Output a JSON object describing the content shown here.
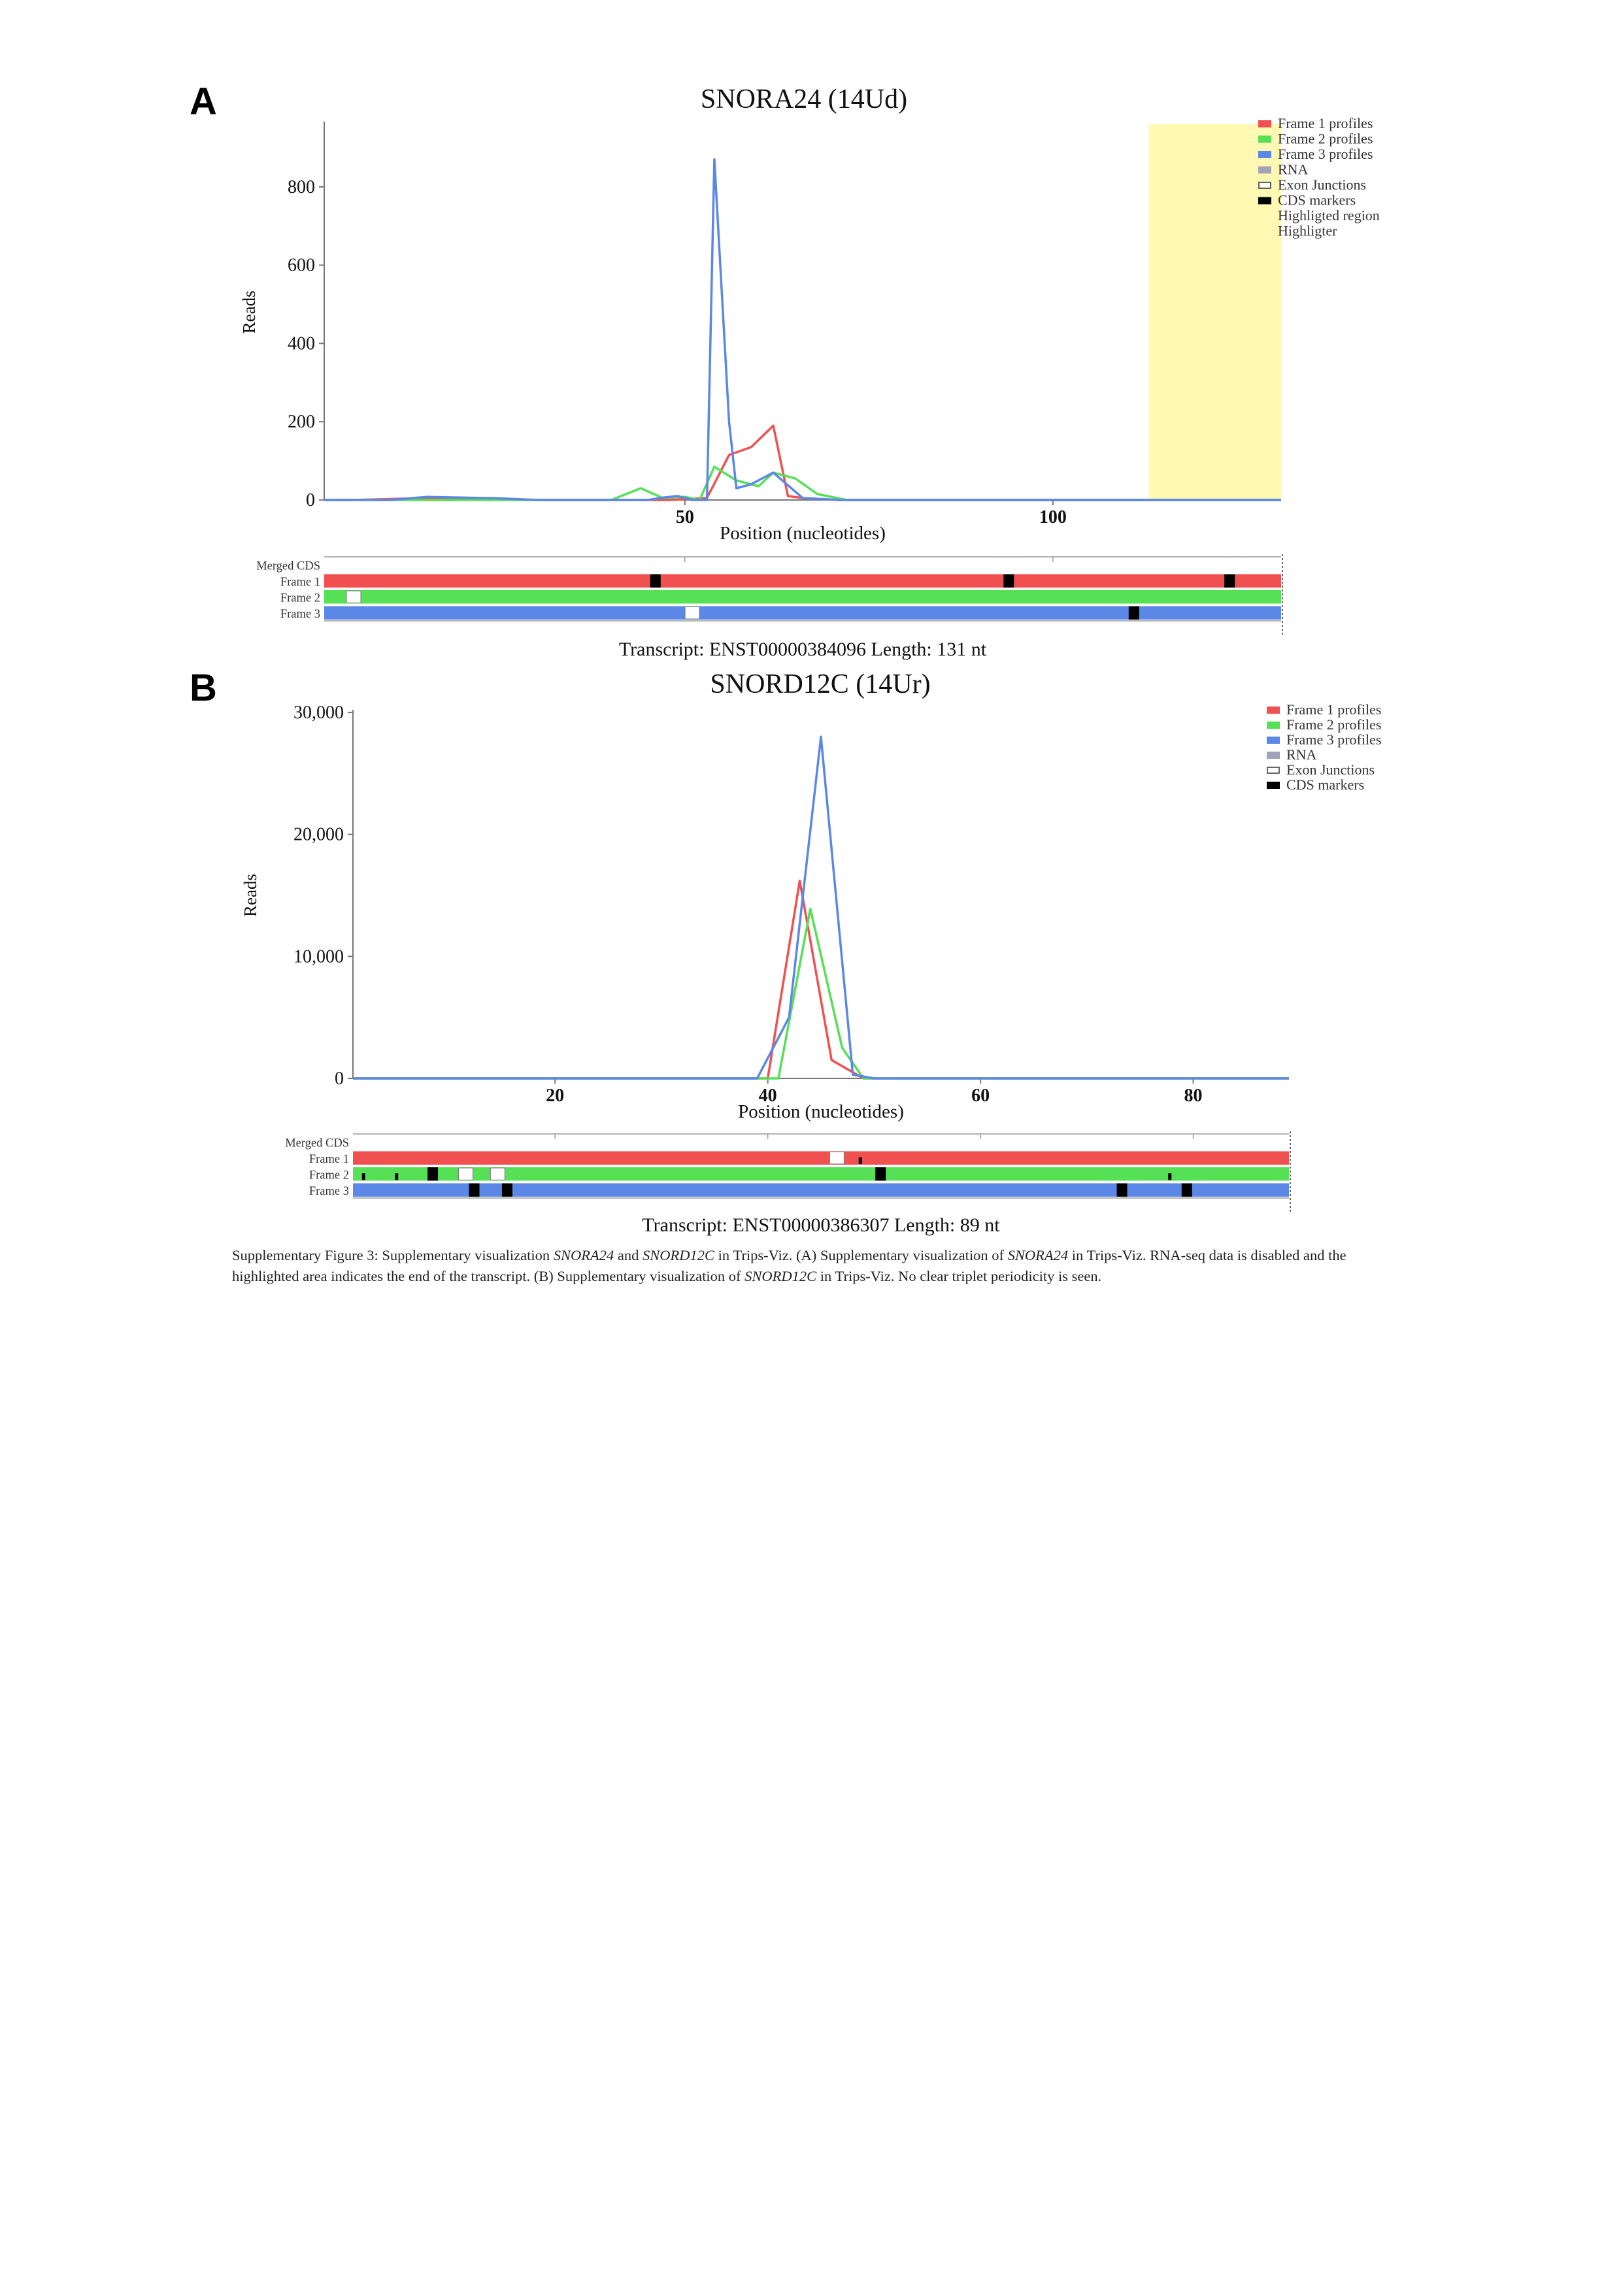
{
  "panels": [
    {
      "letter": "A"
    },
    {
      "letter": "B"
    }
  ],
  "chart_data": [
    {
      "type": "line",
      "title": "SNORA24 (14Ud)",
      "xlabel": "Position (nucleotides)",
      "ylabel": "Reads",
      "xlim": [
        1,
        131
      ],
      "ylim": [
        0,
        960
      ],
      "xticks": [
        50,
        100
      ],
      "xtick_labels": [
        "50",
        "100"
      ],
      "yticks": [
        0,
        200,
        400,
        600,
        800
      ],
      "ytick_labels": [
        "0",
        "200",
        "400",
        "600",
        "800"
      ],
      "grid": false,
      "legend_position": "top-right",
      "legend": [
        {
          "label": "Frame 1 profiles",
          "color": "#f05050",
          "style": "fill"
        },
        {
          "label": "Frame 2 profiles",
          "color": "#55e055",
          "style": "fill"
        },
        {
          "label": "Frame 3 profiles",
          "color": "#5b87e6",
          "style": "fill"
        },
        {
          "label": "RNA",
          "color": "#a3a3b8",
          "style": "fill"
        },
        {
          "label": "Exon Junctions",
          "color": "#ffffff",
          "style": "outline"
        },
        {
          "label": "CDS markers",
          "color": "#000000",
          "style": "fill"
        },
        {
          "label": "Highligted region",
          "color": "",
          "style": "none"
        },
        {
          "label": "Highligter",
          "color": "",
          "style": "none"
        }
      ],
      "highlight_region": {
        "x": [
          113,
          131
        ],
        "color": "#fff9b4"
      },
      "series": [
        {
          "color": "#f05050",
          "x": [
            1,
            5,
            15,
            20,
            30,
            42,
            48,
            53,
            56,
            59,
            62,
            64,
            66,
            68,
            71,
            74,
            80,
            100,
            131
          ],
          "y": [
            0,
            0,
            5,
            3,
            0,
            0,
            0,
            5,
            115,
            135,
            190,
            10,
            5,
            3,
            0,
            0,
            0,
            0,
            0
          ]
        },
        {
          "color": "#55e055",
          "x": [
            1,
            30,
            40,
            44,
            47,
            50,
            52,
            54,
            57,
            60,
            62,
            65,
            68,
            72,
            80,
            131
          ],
          "y": [
            0,
            0,
            0,
            30,
            5,
            8,
            0,
            85,
            50,
            35,
            70,
            55,
            15,
            0,
            0,
            0
          ]
        },
        {
          "color": "#5b87e6",
          "x": [
            1,
            10,
            15,
            20,
            25,
            30,
            45,
            47,
            49,
            51,
            53,
            54,
            56,
            57,
            59,
            62,
            66,
            71,
            131
          ],
          "y": [
            0,
            0,
            8,
            6,
            4,
            0,
            0,
            6,
            10,
            0,
            0,
            870,
            200,
            30,
            40,
            70,
            5,
            0,
            0
          ]
        }
      ],
      "transcript": {
        "labels": [
          "Merged CDS",
          "Frame 1",
          "Frame 2",
          "Frame 3"
        ],
        "frame_colors": [
          "#f05050",
          "#55e055",
          "#5b87e6"
        ],
        "markers": [
          {
            "frame": 1,
            "pos": 46,
            "type": "cds"
          },
          {
            "frame": 1,
            "pos": 94,
            "type": "cds"
          },
          {
            "frame": 1,
            "pos": 124,
            "type": "cds"
          },
          {
            "frame": 2,
            "pos": 5,
            "type": "junction"
          },
          {
            "frame": 3,
            "pos": 51,
            "type": "junction"
          },
          {
            "frame": 3,
            "pos": 111,
            "type": "cds"
          }
        ],
        "caption": "Transcript: ENST00000384096 Length: 131 nt"
      }
    },
    {
      "type": "line",
      "title": "SNORD12C (14Ur)",
      "xlabel": "Position (nucleotides)",
      "ylabel": "Reads",
      "xlim": [
        1,
        89
      ],
      "ylim": [
        0,
        30000
      ],
      "xticks": [
        20,
        40,
        60,
        80
      ],
      "xtick_labels": [
        "20",
        "40",
        "60",
        "80"
      ],
      "yticks": [
        0,
        10000,
        20000,
        30000
      ],
      "ytick_labels": [
        "0",
        "10,000",
        "20,000",
        "30,000"
      ],
      "grid": false,
      "legend_position": "top-right",
      "legend": [
        {
          "label": "Frame 1 profiles",
          "color": "#f05050",
          "style": "fill"
        },
        {
          "label": "Frame 2 profiles",
          "color": "#55e055",
          "style": "fill"
        },
        {
          "label": "Frame 3 profiles",
          "color": "#5b87e6",
          "style": "fill"
        },
        {
          "label": "RNA",
          "color": "#a3a3b8",
          "style": "fill"
        },
        {
          "label": "Exon Junctions",
          "color": "#ffffff",
          "style": "outline"
        },
        {
          "label": "CDS markers",
          "color": "#000000",
          "style": "fill"
        }
      ],
      "series": [
        {
          "color": "#f05050",
          "x": [
            1,
            38,
            40,
            43,
            46,
            49,
            52,
            89
          ],
          "y": [
            0,
            0,
            0,
            16200,
            1500,
            0,
            0,
            0
          ]
        },
        {
          "color": "#55e055",
          "x": [
            1,
            40,
            41,
            44,
            47,
            49,
            52,
            89
          ],
          "y": [
            0,
            0,
            0,
            13900,
            2500,
            0,
            0,
            0
          ]
        },
        {
          "color": "#5b87e6",
          "x": [
            1,
            38,
            39,
            42,
            45,
            48,
            50,
            89
          ],
          "y": [
            0,
            0,
            0,
            5000,
            28000,
            300,
            0,
            0
          ]
        }
      ],
      "transcript": {
        "labels": [
          "Merged CDS",
          "Frame 1",
          "Frame 2",
          "Frame 3"
        ],
        "frame_colors": [
          "#f05050",
          "#55e055",
          "#5b87e6"
        ],
        "markers": [
          {
            "frame": 1,
            "pos": 46.5,
            "type": "junction"
          },
          {
            "frame": 1,
            "pos": 48.7,
            "type": "tick"
          },
          {
            "frame": 2,
            "pos": 2,
            "type": "tick"
          },
          {
            "frame": 2,
            "pos": 5.1,
            "type": "tick"
          },
          {
            "frame": 2,
            "pos": 8.5,
            "type": "cds"
          },
          {
            "frame": 2,
            "pos": 11.6,
            "type": "junction"
          },
          {
            "frame": 2,
            "pos": 14.6,
            "type": "junction"
          },
          {
            "frame": 2,
            "pos": 50.6,
            "type": "cds"
          },
          {
            "frame": 2,
            "pos": 77.8,
            "type": "tick"
          },
          {
            "frame": 3,
            "pos": 12.4,
            "type": "cds"
          },
          {
            "frame": 3,
            "pos": 15.5,
            "type": "cds"
          },
          {
            "frame": 3,
            "pos": 73.3,
            "type": "cds"
          },
          {
            "frame": 3,
            "pos": 79.4,
            "type": "cds"
          }
        ],
        "caption": "Transcript: ENST00000386307 Length: 89 nt"
      }
    }
  ],
  "figure_caption": {
    "p1": "Supplementary Figure 3: Supplementary visualization ",
    "i1": "SNORA24",
    "p2": " and ",
    "i2": "SNORD12C",
    "p3": " in Trips-Viz. (A) Supplementary visualization of ",
    "i3": "SNORA24",
    "p4": " in Trips-Viz. RNA-seq data is disabled and the highlighted area indicates the end of the transcript. (B) Supplementary visualization of ",
    "i4": "SNORD12C",
    "p5": " in Trips-Viz. No clear triplet periodicity is seen."
  }
}
